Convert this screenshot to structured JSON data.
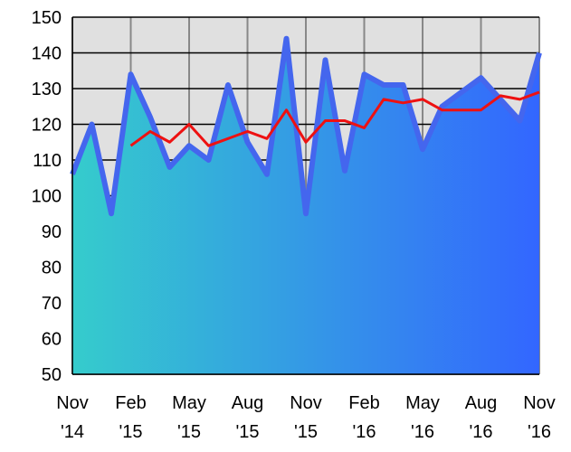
{
  "chart_data": {
    "type": "area",
    "categories": [
      "Nov '14",
      null,
      null,
      "Feb '15",
      null,
      null,
      "May '15",
      null,
      null,
      "Aug '15",
      null,
      null,
      "Nov '15",
      null,
      null,
      "Feb '16",
      null,
      null,
      "May '16",
      null,
      null,
      "Aug '16",
      null,
      null,
      "Nov '16"
    ],
    "series": [
      {
        "color": "#4466ee",
        "values": [
          106,
          120,
          95,
          134,
          122,
          108,
          114,
          110,
          131,
          115,
          106,
          144,
          95,
          138,
          107,
          134,
          131,
          131,
          113,
          125,
          129,
          133,
          127,
          121,
          140
        ]
      },
      {
        "color": "#ee1111",
        "values": [
          null,
          null,
          null,
          114,
          118,
          115,
          120,
          114,
          116,
          118,
          116,
          124,
          115,
          121,
          121,
          119,
          127,
          126,
          127,
          124,
          124,
          124,
          128,
          127,
          129
        ]
      }
    ],
    "area_gradient": [
      "#35cccc",
      "#3366ff"
    ],
    "ylim": [
      50,
      150
    ],
    "yticks": [
      50,
      60,
      70,
      80,
      90,
      100,
      110,
      120,
      130,
      140,
      150
    ],
    "grid": true
  }
}
